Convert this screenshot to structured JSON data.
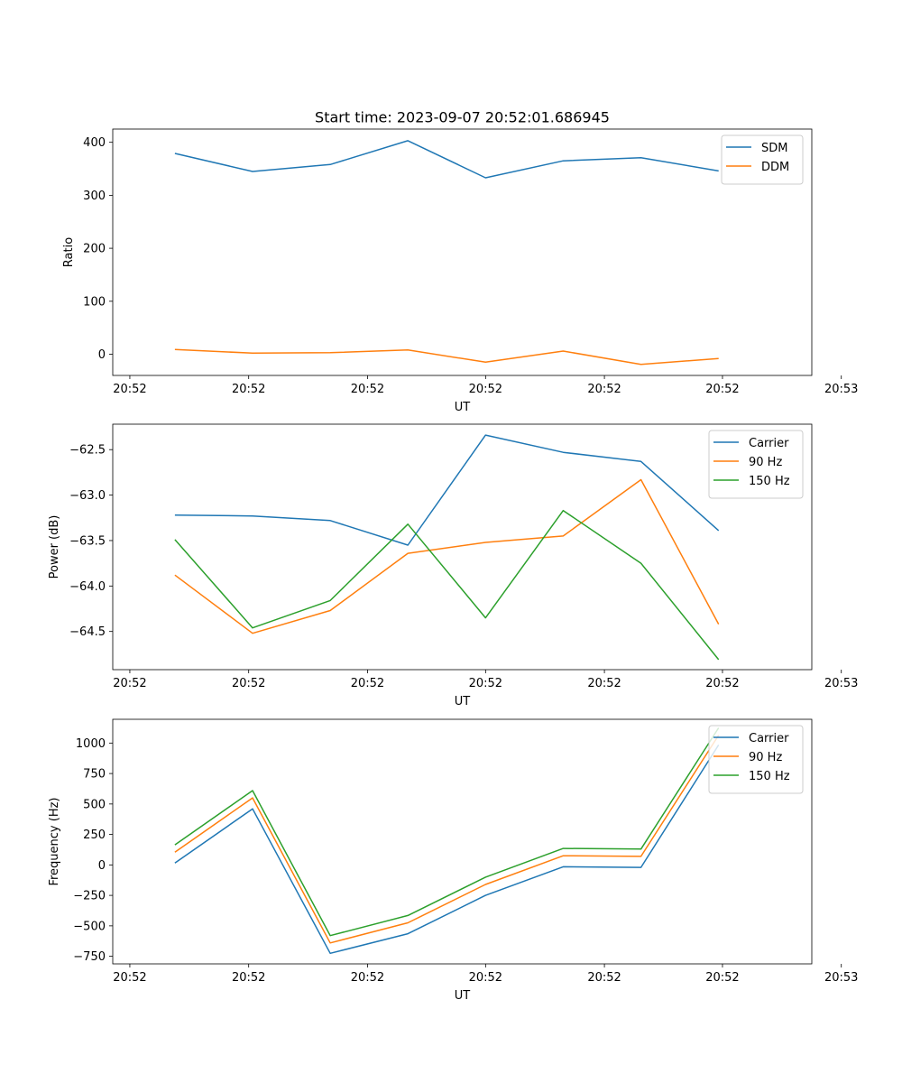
{
  "figure_title": "Start time: 2023-09-07 20:52:01.686945",
  "chart_data": [
    {
      "type": "line",
      "title": "Start time: 2023-09-07 20:52:01.686945",
      "xlabel": "UT",
      "ylabel": "Ratio",
      "x": [
        1,
        2,
        3,
        4,
        5,
        6,
        7,
        8
      ],
      "xlim": [
        0.2,
        9.2
      ],
      "xticks": [
        0.42,
        1.95,
        3.48,
        5.0,
        6.53,
        8.05,
        9.58
      ],
      "xtick_labels": [
        "20:52",
        "20:52",
        "20:52",
        "20:52",
        "20:52",
        "20:52",
        "20:53"
      ],
      "ylim": [
        -40,
        425
      ],
      "yticks": [
        0,
        100,
        200,
        300,
        400
      ],
      "ytick_labels": [
        "0",
        "100",
        "200",
        "300",
        "400"
      ],
      "legend_position": "top-right",
      "series": [
        {
          "name": "SDM",
          "color": "#1f77b4",
          "values": [
            379,
            345,
            358,
            403,
            333,
            365,
            371,
            346
          ]
        },
        {
          "name": "DDM",
          "color": "#ff7f0e",
          "values": [
            9,
            2,
            3,
            8,
            -15,
            6,
            -19,
            -8
          ]
        }
      ]
    },
    {
      "type": "line",
      "xlabel": "UT",
      "ylabel": "Power (dB)",
      "x": [
        1,
        2,
        3,
        4,
        5,
        6,
        7,
        8
      ],
      "xlim": [
        0.2,
        9.2
      ],
      "xticks": [
        0.42,
        1.95,
        3.48,
        5.0,
        6.53,
        8.05,
        9.58
      ],
      "xtick_labels": [
        "20:52",
        "20:52",
        "20:52",
        "20:52",
        "20:52",
        "20:52",
        "20:53"
      ],
      "ylim": [
        -64.92,
        -62.22
      ],
      "yticks": [
        -64.5,
        -64.0,
        -63.5,
        -63.0,
        -62.5
      ],
      "ytick_labels": [
        "−64.5",
        "−64.0",
        "−63.5",
        "−63.0",
        "−62.5"
      ],
      "legend_position": "top-right",
      "series": [
        {
          "name": "Carrier",
          "color": "#1f77b4",
          "values": [
            -63.22,
            -63.23,
            -63.28,
            -63.55,
            -62.34,
            -62.53,
            -62.63,
            -63.39
          ]
        },
        {
          "name": "90 Hz",
          "color": "#ff7f0e",
          "values": [
            -63.88,
            -64.52,
            -64.27,
            -63.64,
            -63.52,
            -63.45,
            -62.83,
            -64.42
          ]
        },
        {
          "name": "150 Hz",
          "color": "#2ca02c",
          "values": [
            -63.49,
            -64.46,
            -64.16,
            -63.32,
            -64.35,
            -63.17,
            -63.75,
            -64.81
          ]
        }
      ]
    },
    {
      "type": "line",
      "xlabel": "UT",
      "ylabel": "Frequency (Hz)",
      "x": [
        1,
        2,
        3,
        4,
        5,
        6,
        7,
        8
      ],
      "xlim": [
        0.2,
        9.2
      ],
      "xticks": [
        0.42,
        1.95,
        3.48,
        5.0,
        6.53,
        8.05,
        9.58
      ],
      "xtick_labels": [
        "20:52",
        "20:52",
        "20:52",
        "20:52",
        "20:52",
        "20:52",
        "20:53"
      ],
      "ylim": [
        -812,
        1195
      ],
      "yticks": [
        -750,
        -500,
        -250,
        0,
        250,
        500,
        750,
        1000
      ],
      "ytick_labels": [
        "−750",
        "−500",
        "−250",
        "0",
        "250",
        "500",
        "750",
        "1000"
      ],
      "legend_position": "top-right",
      "series": [
        {
          "name": "Carrier",
          "color": "#1f77b4",
          "values": [
            15,
            460,
            -725,
            -565,
            -250,
            -15,
            -20,
            985
          ]
        },
        {
          "name": "90 Hz",
          "color": "#ff7f0e",
          "values": [
            105,
            550,
            -640,
            -475,
            -160,
            75,
            70,
            1065
          ]
        },
        {
          "name": "150 Hz",
          "color": "#2ca02c",
          "values": [
            165,
            610,
            -580,
            -415,
            -100,
            135,
            130,
            1125
          ]
        }
      ]
    }
  ]
}
